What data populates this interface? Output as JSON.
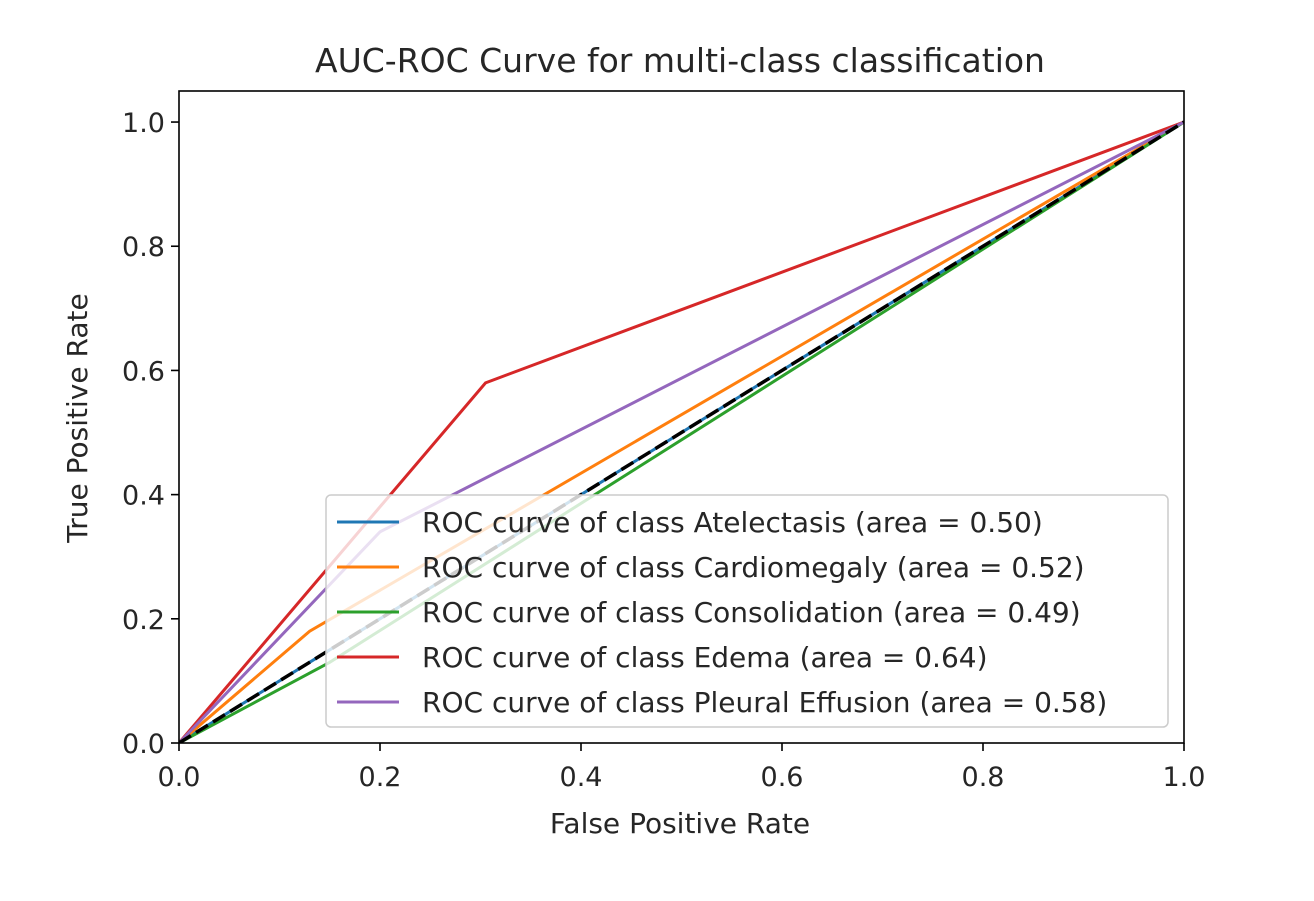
{
  "chart_data": {
    "type": "line",
    "title": "AUC-ROC Curve for multi-class classification",
    "xlabel": "False Positive Rate",
    "ylabel": "True Positive Rate",
    "xlim": [
      0.0,
      1.0
    ],
    "ylim": [
      0.0,
      1.05
    ],
    "xticks": [
      "0.0",
      "0.2",
      "0.4",
      "0.6",
      "0.8",
      "1.0"
    ],
    "yticks": [
      "0.0",
      "0.2",
      "0.4",
      "0.6",
      "0.8",
      "1.0"
    ],
    "grid": false,
    "legend_position": "lower-right",
    "series": [
      {
        "name": "ROC curve of class Atelectasis (area = 0.50)",
        "color": "#1f77b4",
        "x": [
          0.0,
          0.14,
          1.0
        ],
        "y": [
          0.0,
          0.14,
          1.0
        ]
      },
      {
        "name": "ROC curve of class Cardiomegaly (area = 0.52)",
        "color": "#ff7f0e",
        "x": [
          0.0,
          0.13,
          1.0
        ],
        "y": [
          0.0,
          0.18,
          1.0
        ]
      },
      {
        "name": "ROC curve of class Consolidation (area = 0.49)",
        "color": "#2ca02c",
        "x": [
          0.0,
          0.15,
          1.0
        ],
        "y": [
          0.0,
          0.13,
          1.0
        ]
      },
      {
        "name": "ROC curve of class Edema (area = 0.64)",
        "color": "#d62728",
        "x": [
          0.0,
          0.305,
          1.0
        ],
        "y": [
          0.0,
          0.58,
          1.0
        ]
      },
      {
        "name": "ROC curve of class Pleural Effusion (area = 0.58)",
        "color": "#9467bd",
        "x": [
          0.0,
          0.2,
          1.0
        ],
        "y": [
          0.0,
          0.34,
          1.0
        ]
      }
    ],
    "reference_line": {
      "name": "chance",
      "color": "#000000",
      "style": "dashed",
      "x": [
        0.0,
        1.0
      ],
      "y": [
        0.0,
        1.0
      ]
    }
  }
}
